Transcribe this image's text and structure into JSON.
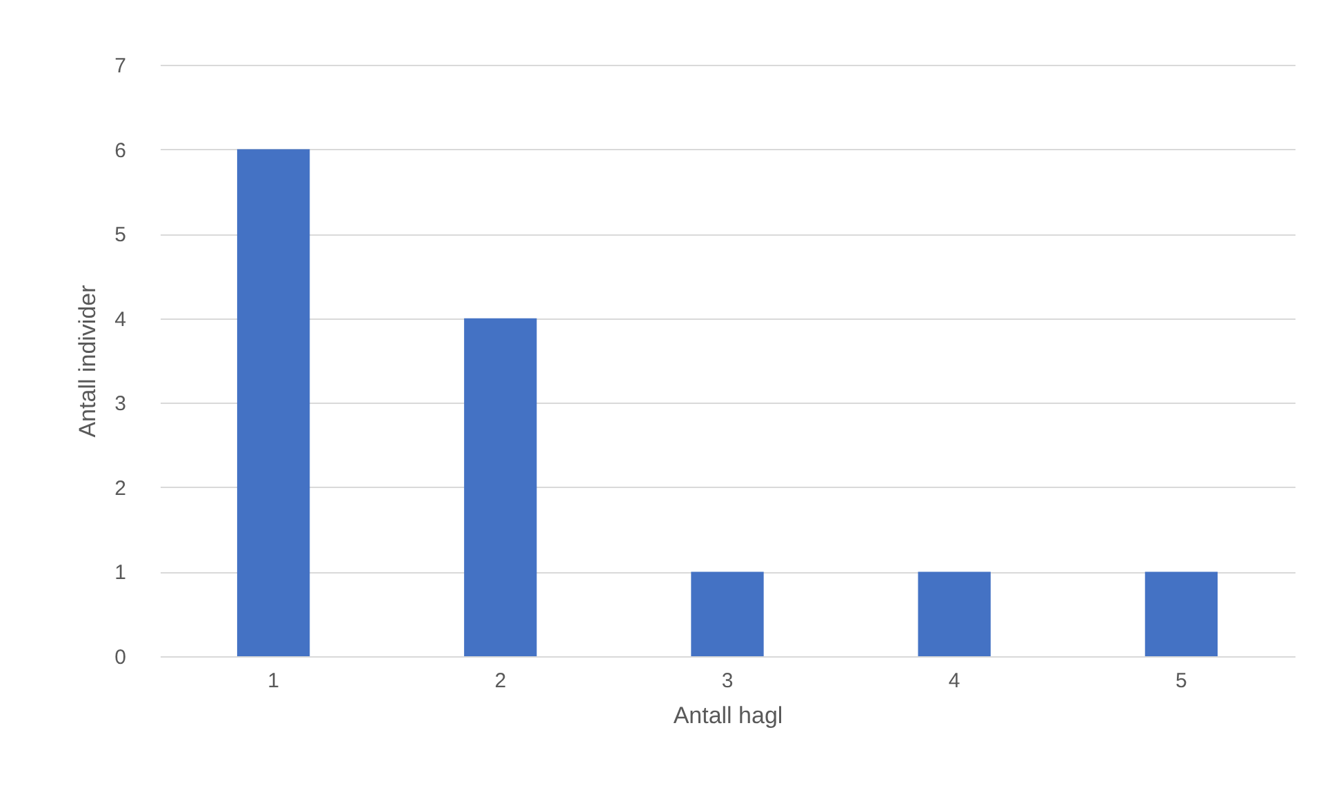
{
  "chart_data": {
    "type": "bar",
    "xlabel": "Antall hagl",
    "ylabel": "Antall individer",
    "categories": [
      "1",
      "2",
      "3",
      "4",
      "5"
    ],
    "values": [
      6,
      4,
      1,
      1,
      1
    ],
    "color": "#4472c4",
    "ylim": [
      0,
      7
    ],
    "yticks": [
      0,
      1,
      2,
      3,
      4,
      5,
      6,
      7
    ],
    "grid": "y"
  }
}
